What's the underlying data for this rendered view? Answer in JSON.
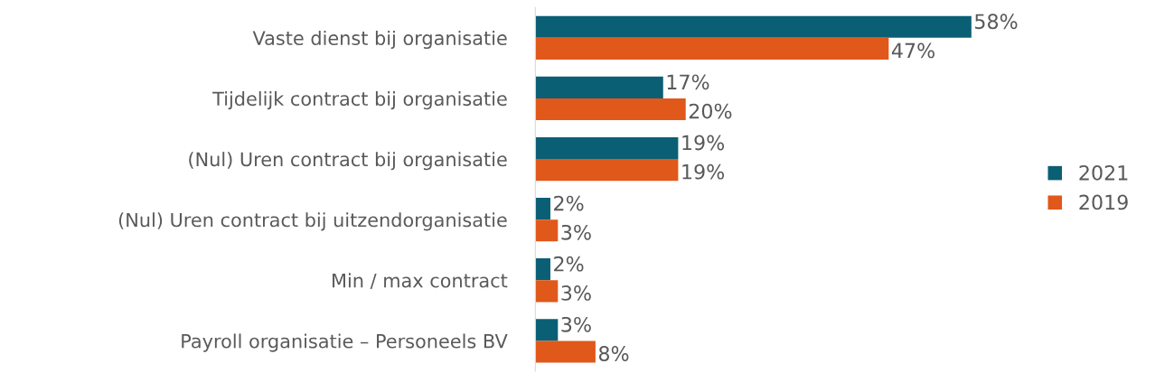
{
  "chart_data": {
    "type": "bar",
    "orientation": "horizontal",
    "categories": [
      "Vaste dienst bij organisatie",
      "Tijdelijk contract bij organisatie",
      "(Nul) Uren contract bij organisatie",
      "(Nul) Uren contract bij uitzendorganisatie",
      "Min / max contract",
      "Payroll organisatie – Personeels BV"
    ],
    "series": [
      {
        "name": "2021",
        "color": "#0b5f74",
        "values": [
          58,
          17,
          19,
          2,
          2,
          3
        ],
        "value_labels": [
          "58%",
          "17%",
          "19%",
          "2%",
          "2%",
          "3%"
        ]
      },
      {
        "name": "2019",
        "color": "#e0581a",
        "values": [
          47,
          20,
          19,
          3,
          3,
          8
        ],
        "value_labels": [
          "47%",
          "20%",
          "19%",
          "3%",
          "3%",
          "8%"
        ]
      }
    ],
    "legend": "right",
    "grid": false
  }
}
